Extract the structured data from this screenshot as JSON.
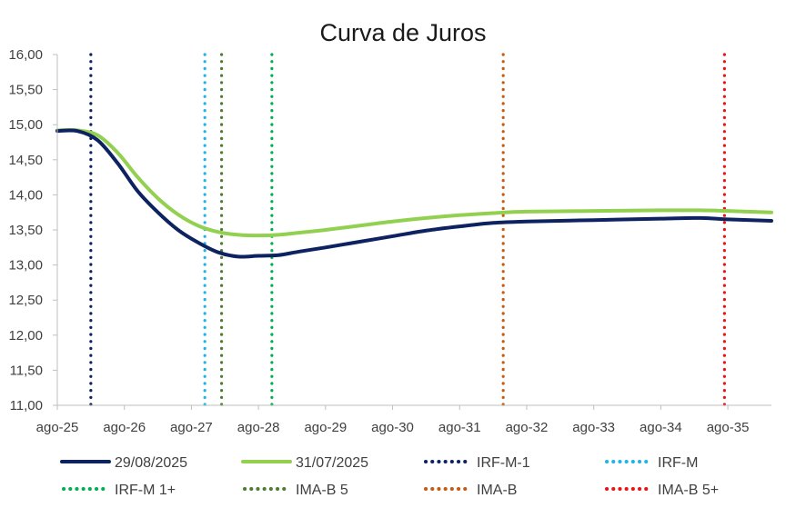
{
  "chart_data": {
    "type": "line",
    "title": "Curva de Juros",
    "xlabel": "",
    "ylabel": "",
    "x_ticks": [
      "ago-25",
      "ago-26",
      "ago-27",
      "ago-28",
      "ago-29",
      "ago-30",
      "ago-31",
      "ago-32",
      "ago-33",
      "ago-34",
      "ago-35"
    ],
    "x_range": [
      2025.0,
      2035.65
    ],
    "y_ticks": [
      "11,00",
      "11,50",
      "12,00",
      "12,50",
      "13,00",
      "13,50",
      "14,00",
      "14,50",
      "15,00",
      "15,50",
      "16,00"
    ],
    "ylim": [
      11.0,
      16.0
    ],
    "grid": false,
    "legend_position": "bottom",
    "series": [
      {
        "name": "29/08/2025",
        "color": "#0d2260",
        "style": "solid",
        "x": [
          2025.0,
          2025.3,
          2025.6,
          2025.9,
          2026.2,
          2026.5,
          2026.8,
          2027.1,
          2027.4,
          2027.7,
          2028.0,
          2028.3,
          2028.6,
          2029.0,
          2029.5,
          2030.0,
          2030.5,
          2031.0,
          2031.5,
          2032.0,
          2033.0,
          2034.0,
          2034.6,
          2035.0,
          2035.65
        ],
        "values": [
          14.91,
          14.91,
          14.78,
          14.45,
          14.05,
          13.75,
          13.5,
          13.32,
          13.18,
          13.12,
          13.13,
          13.14,
          13.19,
          13.25,
          13.33,
          13.41,
          13.49,
          13.55,
          13.6,
          13.62,
          13.64,
          13.66,
          13.67,
          13.65,
          13.63
        ]
      },
      {
        "name": "31/07/2025",
        "color": "#92d050",
        "style": "solid",
        "x": [
          2025.0,
          2025.3,
          2025.6,
          2025.9,
          2026.2,
          2026.5,
          2026.8,
          2027.1,
          2027.4,
          2027.7,
          2028.0,
          2028.3,
          2028.6,
          2029.0,
          2029.5,
          2030.0,
          2030.5,
          2031.0,
          2031.5,
          2032.0,
          2033.0,
          2034.0,
          2034.6,
          2035.0,
          2035.65
        ],
        "values": [
          14.92,
          14.92,
          14.85,
          14.6,
          14.25,
          13.95,
          13.72,
          13.56,
          13.47,
          13.43,
          13.42,
          13.43,
          13.46,
          13.5,
          13.56,
          13.62,
          13.67,
          13.71,
          13.74,
          13.76,
          13.77,
          13.78,
          13.78,
          13.77,
          13.75
        ]
      }
    ],
    "vertical_markers": [
      {
        "name": "IRF-M-1",
        "x": 2025.5,
        "color": "#0d2260"
      },
      {
        "name": "IRF-M",
        "x": 2027.2,
        "color": "#1fb4e8"
      },
      {
        "name": "IRF-M 1+",
        "x": 2028.2,
        "color": "#00b050"
      },
      {
        "name": "IMA-B 5",
        "x": 2027.45,
        "color": "#4e7d32"
      },
      {
        "name": "IMA-B",
        "x": 2031.65,
        "color": "#c55a11"
      },
      {
        "name": "IMA-B 5+",
        "x": 2034.95,
        "color": "#ee1111"
      }
    ]
  }
}
